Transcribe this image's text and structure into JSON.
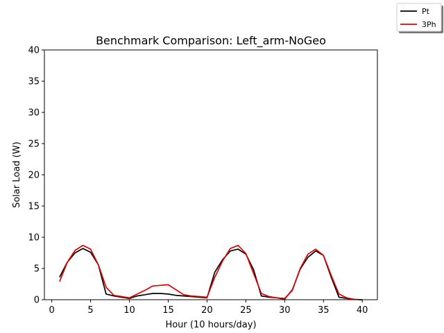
{
  "chart_data": {
    "type": "line",
    "title": "Benchmark Comparison: Left_arm-NoGeo",
    "xlabel": "Hour (10 hours/day)",
    "ylabel": "Solar Load (W)",
    "xlim": [
      -0.95,
      41.95
    ],
    "ylim": [
      0,
      40
    ],
    "xticks": [
      0,
      5,
      10,
      15,
      20,
      25,
      30,
      35,
      40
    ],
    "yticks": [
      0,
      5,
      10,
      15,
      20,
      25,
      30,
      35,
      40
    ],
    "grid": false,
    "legend_position": "top-right",
    "x": [
      1,
      2,
      3,
      4,
      5,
      6,
      7,
      8,
      9,
      10,
      11,
      12,
      13,
      14,
      15,
      16,
      17,
      18,
      19,
      20,
      21,
      22,
      23,
      24,
      25,
      26,
      27,
      28,
      29,
      30,
      31,
      32,
      33,
      34,
      35,
      36,
      37,
      38,
      39,
      40
    ],
    "series": [
      {
        "name": "Pt",
        "color": "#000000",
        "values": [
          3.6,
          6.0,
          7.5,
          8.2,
          7.6,
          5.6,
          0.9,
          0.6,
          0.4,
          0.2,
          0.6,
          0.8,
          1.0,
          1.0,
          0.9,
          0.7,
          0.6,
          0.5,
          0.4,
          0.3,
          4.4,
          6.4,
          7.8,
          8.1,
          7.3,
          4.8,
          0.6,
          0.4,
          0.3,
          0.1,
          1.6,
          4.9,
          6.8,
          7.8,
          7.1,
          3.6,
          0.4,
          0.2,
          0.05,
          0.0
        ]
      },
      {
        "name": "3Ph",
        "color": "#e00000",
        "values": [
          2.9,
          6.0,
          7.9,
          8.7,
          8.1,
          5.6,
          2.0,
          0.7,
          0.5,
          0.3,
          0.9,
          1.5,
          2.2,
          2.3,
          2.4,
          1.6,
          0.8,
          0.6,
          0.5,
          0.4,
          3.6,
          6.2,
          8.2,
          8.7,
          7.4,
          4.2,
          1.0,
          0.5,
          0.3,
          0.2,
          1.5,
          5.0,
          7.3,
          8.1,
          7.1,
          3.9,
          0.9,
          0.3,
          0.05,
          0.0
        ]
      }
    ]
  }
}
